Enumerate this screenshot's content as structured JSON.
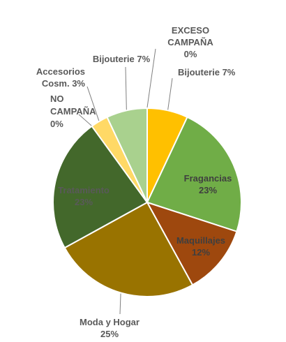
{
  "chart_data": {
    "type": "pie",
    "title": "",
    "slices": [
      {
        "label": "Bijouterie 7%",
        "value": 7,
        "color": "#ffc000"
      },
      {
        "label": "Fragancias",
        "pct": "23%",
        "value": 23,
        "color": "#70ad47"
      },
      {
        "label": "Maquillajes",
        "pct": "12%",
        "value": 12,
        "color": "#9e480e"
      },
      {
        "label": "Moda y Hogar",
        "pct": "25%",
        "value": 25,
        "color": "#997300"
      },
      {
        "label": "Tratamiento",
        "pct": "23%",
        "value": 23,
        "color": "#43682b"
      },
      {
        "label": "NO CAMPAÑA",
        "pct": "0%",
        "value": 0,
        "color": "#ffe699"
      },
      {
        "label": "Accesorios Cosm. 3%",
        "value": 3,
        "color": "#ffd966"
      },
      {
        "label": "Bijouterie 7%",
        "value": 7,
        "color": "#a9d18e"
      },
      {
        "label": "EXCESO CAMPAÑA",
        "pct": "0%",
        "value": 0,
        "color": "#a5a5a5"
      }
    ]
  }
}
